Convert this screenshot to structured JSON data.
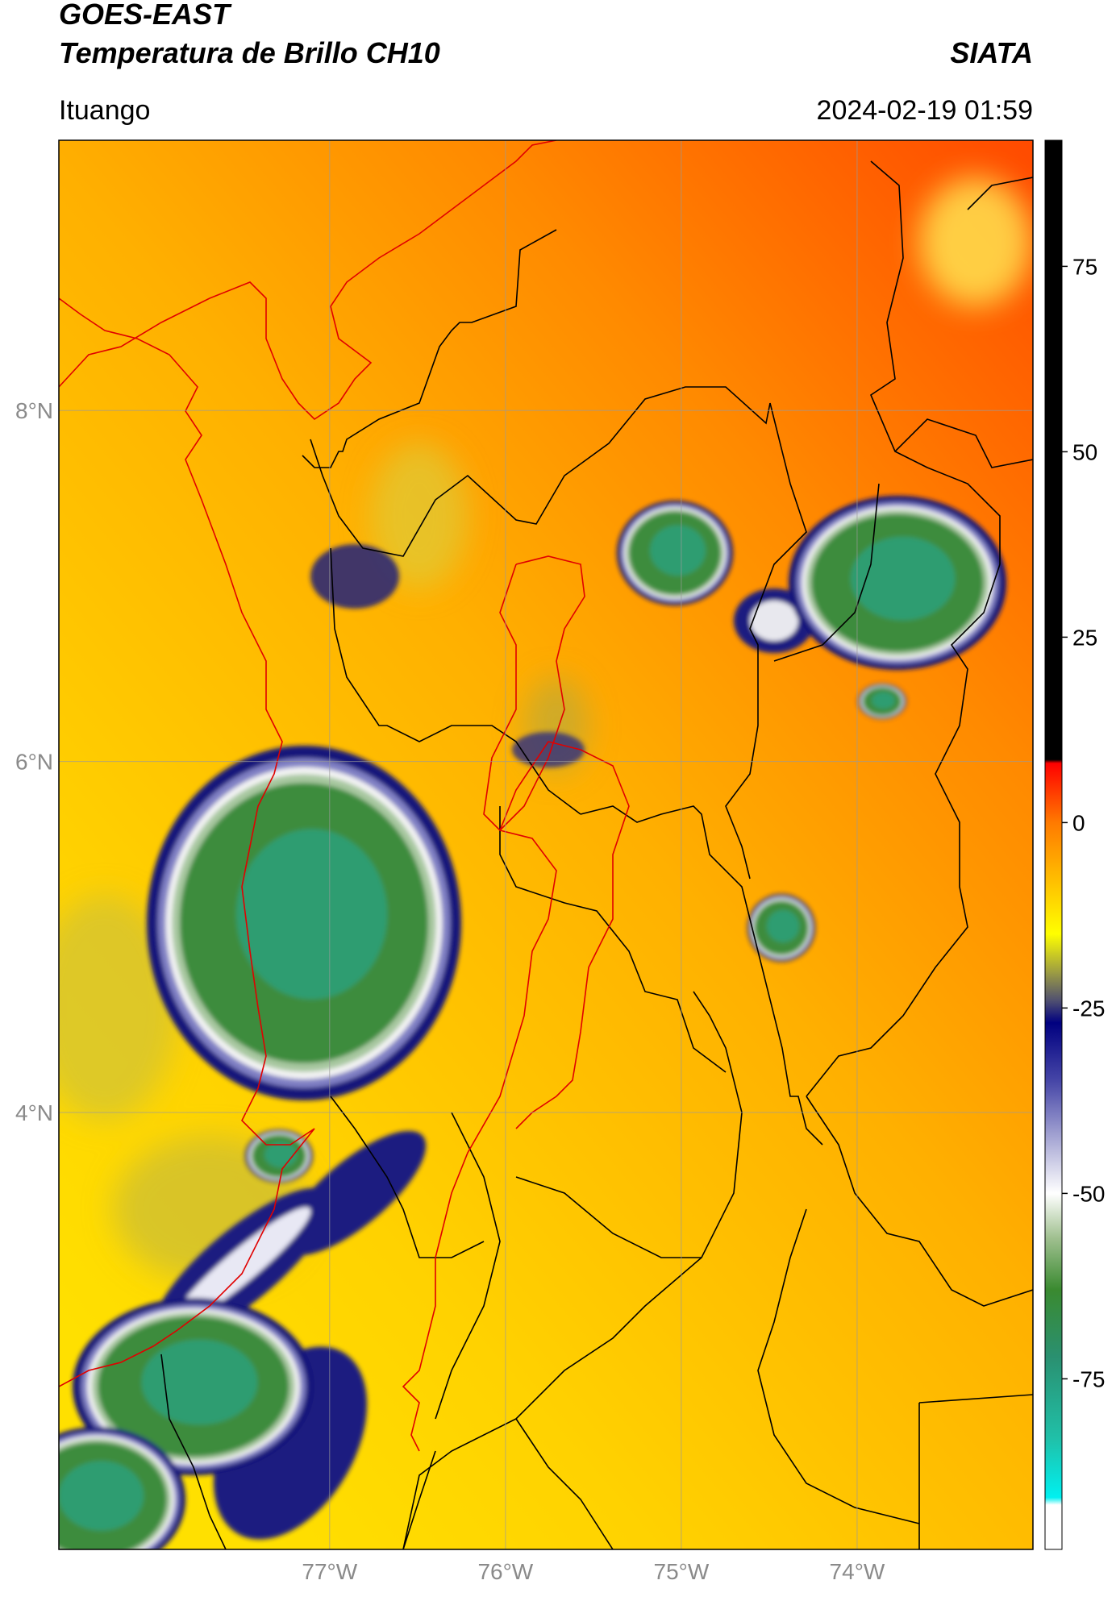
{
  "header": {
    "title": "GOES-EAST",
    "subtitle": "Temperatura de Brillo CH10",
    "source": "SIATA",
    "location": "Ituango",
    "datetime": "2024-02-19 01:59"
  },
  "map": {
    "xlim": [
      -78.54,
      -73.0
    ],
    "ylim": [
      1.51,
      9.54
    ],
    "xticks": [
      {
        "value": -77,
        "label": "77°W"
      },
      {
        "value": -76,
        "label": "76°W"
      },
      {
        "value": -75,
        "label": "75°W"
      },
      {
        "value": -74,
        "label": "74°W"
      }
    ],
    "yticks": [
      {
        "value": 8,
        "label": "8°N"
      },
      {
        "value": 6,
        "label": "6°N"
      },
      {
        "value": 4,
        "label": "4°N"
      }
    ],
    "grid": true
  },
  "colorbar": {
    "lim": [
      -98,
      92
    ],
    "ticks": [
      75,
      50,
      25,
      0,
      -25,
      -50,
      -75
    ],
    "colormap": [
      {
        "value": 92,
        "color": "#000000"
      },
      {
        "value": 8.5,
        "color": "#000000"
      },
      {
        "value": 8,
        "color": "#ff0000"
      },
      {
        "value": 0,
        "color": "#ff7a00"
      },
      {
        "value": -10,
        "color": "#ffd200"
      },
      {
        "value": -15,
        "color": "#ffff00"
      },
      {
        "value": -20,
        "color": "#a0a040"
      },
      {
        "value": -24,
        "color": "#505070"
      },
      {
        "value": -27,
        "color": "#000080"
      },
      {
        "value": -35,
        "color": "#4848a8"
      },
      {
        "value": -44,
        "color": "#b8b8dc"
      },
      {
        "value": -50,
        "color": "#ffffff"
      },
      {
        "value": -56,
        "color": "#a0c090"
      },
      {
        "value": -63,
        "color": "#3a8a30"
      },
      {
        "value": -72,
        "color": "#2a9070"
      },
      {
        "value": -83,
        "color": "#20c0a8"
      },
      {
        "value": -91,
        "color": "#00f0f0"
      },
      {
        "value": -92,
        "color": "#ffffff"
      },
      {
        "value": -98,
        "color": "#ffffff"
      }
    ]
  }
}
